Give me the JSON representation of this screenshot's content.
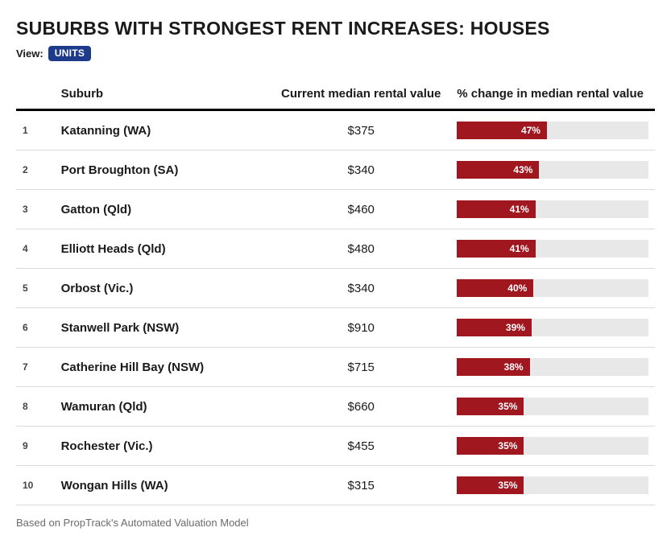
{
  "title": "SUBURBS WITH STRONGEST RENT INCREASES: HOUSES",
  "view": {
    "label": "View:",
    "button": "UNITS"
  },
  "columns": {
    "rank": "",
    "suburb": "Suburb",
    "value": "Current median rental value",
    "change": "% change in median rental value"
  },
  "bar": {
    "fill_color": "#a01720",
    "track_color": "#e8e8e8",
    "max_pct": 100
  },
  "rows": [
    {
      "rank": "1",
      "suburb": "Katanning (WA)",
      "value": "$375",
      "pct": 47,
      "pct_label": "47%"
    },
    {
      "rank": "2",
      "suburb": "Port Broughton (SA)",
      "value": "$340",
      "pct": 43,
      "pct_label": "43%"
    },
    {
      "rank": "3",
      "suburb": "Gatton (Qld)",
      "value": "$460",
      "pct": 41,
      "pct_label": "41%"
    },
    {
      "rank": "4",
      "suburb": "Elliott Heads (Qld)",
      "value": "$480",
      "pct": 41,
      "pct_label": "41%"
    },
    {
      "rank": "5",
      "suburb": "Orbost (Vic.)",
      "value": "$340",
      "pct": 40,
      "pct_label": "40%"
    },
    {
      "rank": "6",
      "suburb": "Stanwell Park (NSW)",
      "value": "$910",
      "pct": 39,
      "pct_label": "39%"
    },
    {
      "rank": "7",
      "suburb": "Catherine Hill Bay (NSW)",
      "value": "$715",
      "pct": 38,
      "pct_label": "38%"
    },
    {
      "rank": "8",
      "suburb": "Wamuran (Qld)",
      "value": "$660",
      "pct": 35,
      "pct_label": "35%"
    },
    {
      "rank": "9",
      "suburb": "Rochester (Vic.)",
      "value": "$455",
      "pct": 35,
      "pct_label": "35%"
    },
    {
      "rank": "10",
      "suburb": "Wongan Hills (WA)",
      "value": "$315",
      "pct": 35,
      "pct_label": "35%"
    }
  ],
  "footnote": "Based on PropTrack's Automated Valuation Model"
}
